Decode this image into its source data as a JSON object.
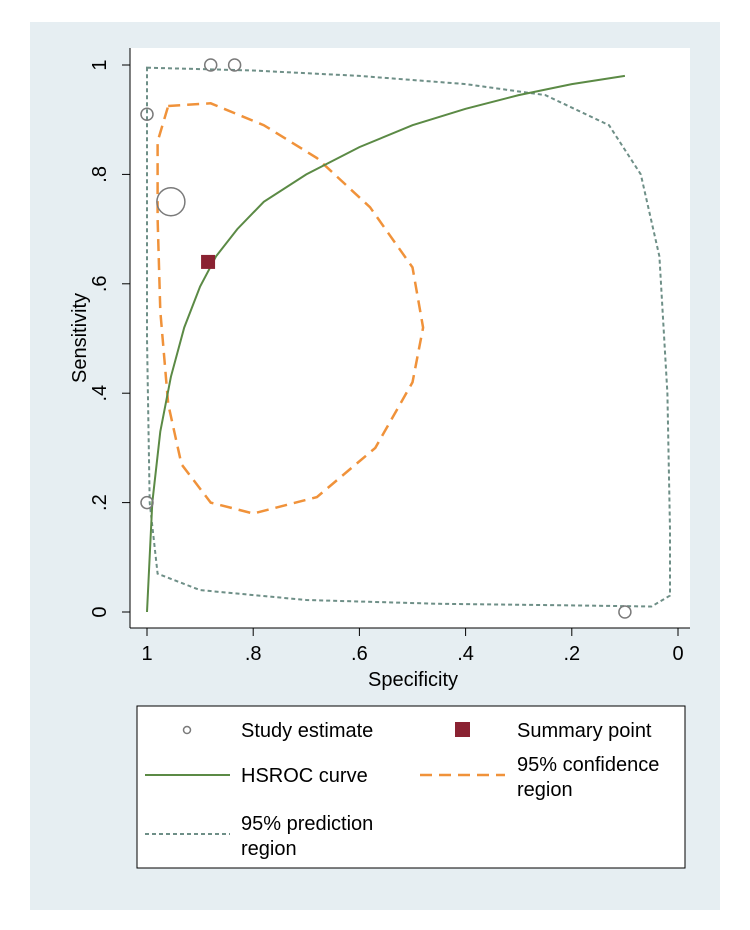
{
  "chart_data": {
    "type": "scatter",
    "title": "",
    "xlabel": "Specificity",
    "ylabel": "Sensitivity",
    "x_reversed": true,
    "xlim": [
      1,
      0
    ],
    "ylim": [
      0,
      1
    ],
    "x_ticks": [
      {
        "value": 1,
        "label": "1"
      },
      {
        "value": 0.8,
        "label": ".8"
      },
      {
        "value": 0.6,
        "label": ".6"
      },
      {
        "value": 0.4,
        "label": ".4"
      },
      {
        "value": 0.2,
        "label": ".2"
      },
      {
        "value": 0,
        "label": "0"
      }
    ],
    "y_ticks": [
      {
        "value": 0,
        "label": "0"
      },
      {
        "value": 0.2,
        "label": ".2"
      },
      {
        "value": 0.4,
        "label": ".4"
      },
      {
        "value": 0.6,
        "label": ".6"
      },
      {
        "value": 0.8,
        "label": ".8"
      },
      {
        "value": 1,
        "label": "1"
      }
    ],
    "grid": false,
    "legend_position": "bottom",
    "study_estimates": [
      {
        "specificity": 0.88,
        "sensitivity": 1.0,
        "size": "small"
      },
      {
        "specificity": 0.835,
        "sensitivity": 1.0,
        "size": "small"
      },
      {
        "specificity": 1.0,
        "sensitivity": 0.91,
        "size": "small"
      },
      {
        "specificity": 0.955,
        "sensitivity": 0.75,
        "size": "large"
      },
      {
        "specificity": 1.0,
        "sensitivity": 0.2,
        "size": "small"
      },
      {
        "specificity": 0.1,
        "sensitivity": 0.0,
        "size": "small"
      }
    ],
    "summary_point": {
      "specificity": 0.885,
      "sensitivity": 0.64
    },
    "hsroc_curve": [
      {
        "specificity": 1.0,
        "sensitivity": 0.0
      },
      {
        "specificity": 0.99,
        "sensitivity": 0.2
      },
      {
        "specificity": 0.975,
        "sensitivity": 0.33
      },
      {
        "specificity": 0.955,
        "sensitivity": 0.43
      },
      {
        "specificity": 0.93,
        "sensitivity": 0.52
      },
      {
        "specificity": 0.9,
        "sensitivity": 0.595
      },
      {
        "specificity": 0.87,
        "sensitivity": 0.65
      },
      {
        "specificity": 0.83,
        "sensitivity": 0.7
      },
      {
        "specificity": 0.78,
        "sensitivity": 0.75
      },
      {
        "specificity": 0.7,
        "sensitivity": 0.8
      },
      {
        "specificity": 0.6,
        "sensitivity": 0.85
      },
      {
        "specificity": 0.5,
        "sensitivity": 0.89
      },
      {
        "specificity": 0.4,
        "sensitivity": 0.92
      },
      {
        "specificity": 0.3,
        "sensitivity": 0.945
      },
      {
        "specificity": 0.2,
        "sensitivity": 0.965
      },
      {
        "specificity": 0.1,
        "sensitivity": 0.98
      }
    ],
    "confidence_region": [
      {
        "specificity": 0.96,
        "sensitivity": 0.925
      },
      {
        "specificity": 0.88,
        "sensitivity": 0.93
      },
      {
        "specificity": 0.78,
        "sensitivity": 0.89
      },
      {
        "specificity": 0.68,
        "sensitivity": 0.83
      },
      {
        "specificity": 0.58,
        "sensitivity": 0.74
      },
      {
        "specificity": 0.5,
        "sensitivity": 0.63
      },
      {
        "specificity": 0.48,
        "sensitivity": 0.52
      },
      {
        "specificity": 0.5,
        "sensitivity": 0.42
      },
      {
        "specificity": 0.57,
        "sensitivity": 0.3
      },
      {
        "specificity": 0.68,
        "sensitivity": 0.21
      },
      {
        "specificity": 0.8,
        "sensitivity": 0.18
      },
      {
        "specificity": 0.88,
        "sensitivity": 0.2
      },
      {
        "specificity": 0.935,
        "sensitivity": 0.27
      },
      {
        "specificity": 0.96,
        "sensitivity": 0.38
      },
      {
        "specificity": 0.975,
        "sensitivity": 0.55
      },
      {
        "specificity": 0.98,
        "sensitivity": 0.72
      },
      {
        "specificity": 0.98,
        "sensitivity": 0.86
      }
    ],
    "prediction_region": [
      {
        "specificity": 1.0,
        "sensitivity": 0.995
      },
      {
        "specificity": 0.8,
        "sensitivity": 0.99
      },
      {
        "specificity": 0.6,
        "sensitivity": 0.98
      },
      {
        "specificity": 0.4,
        "sensitivity": 0.965
      },
      {
        "specificity": 0.25,
        "sensitivity": 0.945
      },
      {
        "specificity": 0.13,
        "sensitivity": 0.89
      },
      {
        "specificity": 0.07,
        "sensitivity": 0.8
      },
      {
        "specificity": 0.035,
        "sensitivity": 0.65
      },
      {
        "specificity": 0.02,
        "sensitivity": 0.4
      },
      {
        "specificity": 0.015,
        "sensitivity": 0.15
      },
      {
        "specificity": 0.015,
        "sensitivity": 0.03
      },
      {
        "specificity": 0.05,
        "sensitivity": 0.01
      },
      {
        "specificity": 0.2,
        "sensitivity": 0.012
      },
      {
        "specificity": 0.45,
        "sensitivity": 0.015
      },
      {
        "specificity": 0.7,
        "sensitivity": 0.022
      },
      {
        "specificity": 0.9,
        "sensitivity": 0.04
      },
      {
        "specificity": 0.98,
        "sensitivity": 0.07
      },
      {
        "specificity": 0.995,
        "sensitivity": 0.2
      },
      {
        "specificity": 1.0,
        "sensitivity": 0.5
      },
      {
        "specificity": 1.0,
        "sensitivity": 0.85
      }
    ],
    "series": [
      {
        "name": "Study estimate",
        "type": "scatter"
      },
      {
        "name": "Summary point",
        "type": "marker"
      },
      {
        "name": "HSROC curve",
        "type": "line"
      },
      {
        "name": "95% confidence region",
        "type": "dashed-line"
      },
      {
        "name": "95% prediction region",
        "type": "dotted-line"
      }
    ],
    "colors": {
      "hsroc": "#5b8a45",
      "confidence": "#f0923a",
      "prediction": "#6e8f87",
      "summary": "#8a2232",
      "study": "#7a7a7a",
      "outer_bg": "#e6eef2"
    }
  },
  "legend": {
    "study_estimate": "Study estimate",
    "summary_point": "Summary point",
    "hsroc_curve": "HSROC curve",
    "confidence_line1": "95% confidence",
    "confidence_line2": "region",
    "prediction_line1": "95% prediction",
    "prediction_line2": "region"
  }
}
